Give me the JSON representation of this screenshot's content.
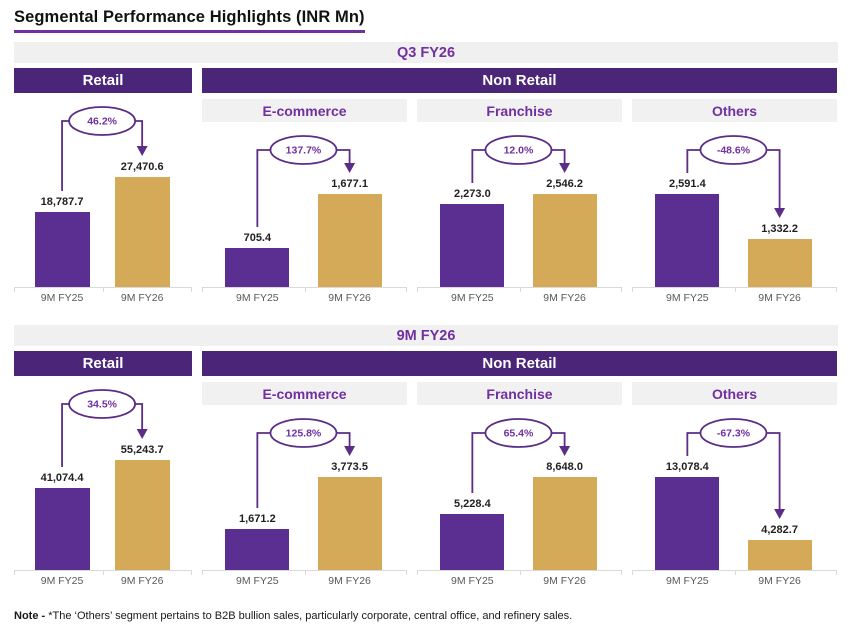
{
  "page_title": "Segmental Performance Highlights (INR Mn)",
  "note_prefix": "Note - ",
  "note_text": "*The ‘Others’ segment pertains to B2B bullion sales, particularly corporate, central office, and refinery sales.",
  "categories": [
    "9M FY25",
    "9M FY26"
  ],
  "colors": {
    "bar_fy25": "#5B2F91",
    "bar_fy26": "#D4AA58",
    "band_purple": "#4B2578",
    "accent_purple": "#7030A0",
    "connector_purple": "#5B2D86",
    "band_gray": "#F0F0F0",
    "axis_gray": "#D9D9D9",
    "tick_text": "#595959"
  },
  "sections": [
    {
      "title": "Q3 FY26",
      "retail_label": "Retail",
      "non_retail_label": "Non Retail",
      "charts": [
        {
          "name": "Retail",
          "header": null,
          "growth_label": "46.2%",
          "values": [
            18787.7,
            27470.6
          ],
          "value_labels": [
            "18,787.7",
            "27,470.6"
          ]
        },
        {
          "name": "E-commerce",
          "header": "E-commerce",
          "growth_label": "137.7%",
          "values": [
            705.4,
            1677.1
          ],
          "value_labels": [
            "705.4",
            "1,677.1"
          ]
        },
        {
          "name": "Franchise",
          "header": "Franchise",
          "growth_label": "12.0%",
          "values": [
            2273.0,
            2546.2
          ],
          "value_labels": [
            "2,273.0",
            "2,546.2"
          ]
        },
        {
          "name": "Others",
          "header": "Others",
          "growth_label": "-48.6%",
          "values": [
            2591.4,
            1332.2
          ],
          "value_labels": [
            "2,591.4",
            "1,332.2"
          ]
        }
      ]
    },
    {
      "title": "9M FY26",
      "retail_label": "Retail",
      "non_retail_label": "Non Retail",
      "charts": [
        {
          "name": "Retail",
          "header": null,
          "growth_label": "34.5%",
          "values": [
            41074.4,
            55243.7
          ],
          "value_labels": [
            "41,074.4",
            "55,243.7"
          ]
        },
        {
          "name": "E-commerce",
          "header": "E-commerce",
          "growth_label": "125.8%",
          "values": [
            1671.2,
            3773.5
          ],
          "value_labels": [
            "1,671.2",
            "3,773.5"
          ]
        },
        {
          "name": "Franchise",
          "header": "Franchise",
          "growth_label": "65.4%",
          "values": [
            5228.4,
            8648.0
          ],
          "value_labels": [
            "5,228.4",
            "8,648.0"
          ]
        },
        {
          "name": "Others",
          "header": "Others",
          "growth_label": "-67.3%",
          "values": [
            13078.4,
            4282.7
          ],
          "value_labels": [
            "13,078.4",
            "4,282.7"
          ]
        }
      ]
    }
  ],
  "chart_data": {
    "title": "Segmental Performance Highlights (INR Mn)",
    "unit": "INR Mn",
    "type": "bar",
    "categories": [
      "9M FY25",
      "9M FY26"
    ],
    "series_colors": {
      "9M FY25": "#5B2F91",
      "9M FY26": "#D4AA58"
    },
    "legend_position": "none",
    "grid": false,
    "charts": [
      {
        "section": "Q3 FY26",
        "group": "Retail",
        "segment": "Retail",
        "values": [
          18787.7,
          27470.6
        ],
        "growth_pct": 46.2
      },
      {
        "section": "Q3 FY26",
        "group": "Non Retail",
        "segment": "E-commerce",
        "values": [
          705.4,
          1677.1
        ],
        "growth_pct": 137.7
      },
      {
        "section": "Q3 FY26",
        "group": "Non Retail",
        "segment": "Franchise",
        "values": [
          2273.0,
          2546.2
        ],
        "growth_pct": 12.0
      },
      {
        "section": "Q3 FY26",
        "group": "Non Retail",
        "segment": "Others",
        "values": [
          2591.4,
          1332.2
        ],
        "growth_pct": -48.6
      },
      {
        "section": "9M FY26",
        "group": "Retail",
        "segment": "Retail",
        "values": [
          41074.4,
          55243.7
        ],
        "growth_pct": 34.5
      },
      {
        "section": "9M FY26",
        "group": "Non Retail",
        "segment": "E-commerce",
        "values": [
          1671.2,
          3773.5
        ],
        "growth_pct": 125.8
      },
      {
        "section": "9M FY26",
        "group": "Non Retail",
        "segment": "Franchise",
        "values": [
          5228.4,
          8648.0
        ],
        "growth_pct": 65.4
      },
      {
        "section": "9M FY26",
        "group": "Non Retail",
        "segment": "Others",
        "values": [
          13078.4,
          4282.7
        ],
        "growth_pct": -67.3
      }
    ]
  }
}
